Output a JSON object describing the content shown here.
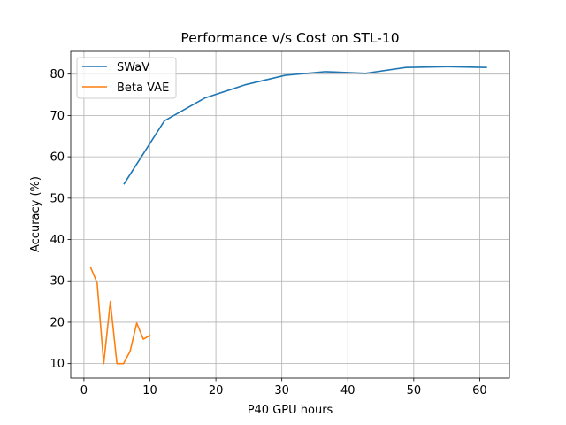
{
  "chart_data": {
    "type": "line",
    "title": "Performance v/s Cost on STL-10",
    "xlabel": "P40 GPU hours",
    "ylabel": "Accuracy (%)",
    "xlim": [
      -2,
      64.5
    ],
    "ylim": [
      6.5,
      85.5
    ],
    "xticks": [
      0,
      10,
      20,
      30,
      40,
      50,
      60
    ],
    "yticks": [
      10,
      20,
      30,
      40,
      50,
      60,
      70,
      80
    ],
    "grid": true,
    "legend_position": "top-left",
    "series": [
      {
        "name": "SWaV",
        "color": "#1f77b4",
        "x": [
          6.1,
          12.2,
          18.3,
          24.4,
          30.5,
          36.6,
          42.7,
          48.8,
          54.9,
          61.0
        ],
        "y": [
          53.5,
          68.7,
          74.2,
          77.4,
          79.7,
          80.6,
          80.2,
          81.6,
          81.8,
          81.6
        ]
      },
      {
        "name": "Beta VAE",
        "color": "#ff7f0e",
        "x": [
          1,
          2,
          3,
          4,
          5,
          6,
          7,
          8,
          9,
          10
        ],
        "y": [
          33.3,
          29.5,
          10.0,
          25.0,
          10.0,
          10.0,
          13.0,
          19.8,
          15.9,
          16.8
        ]
      }
    ]
  }
}
